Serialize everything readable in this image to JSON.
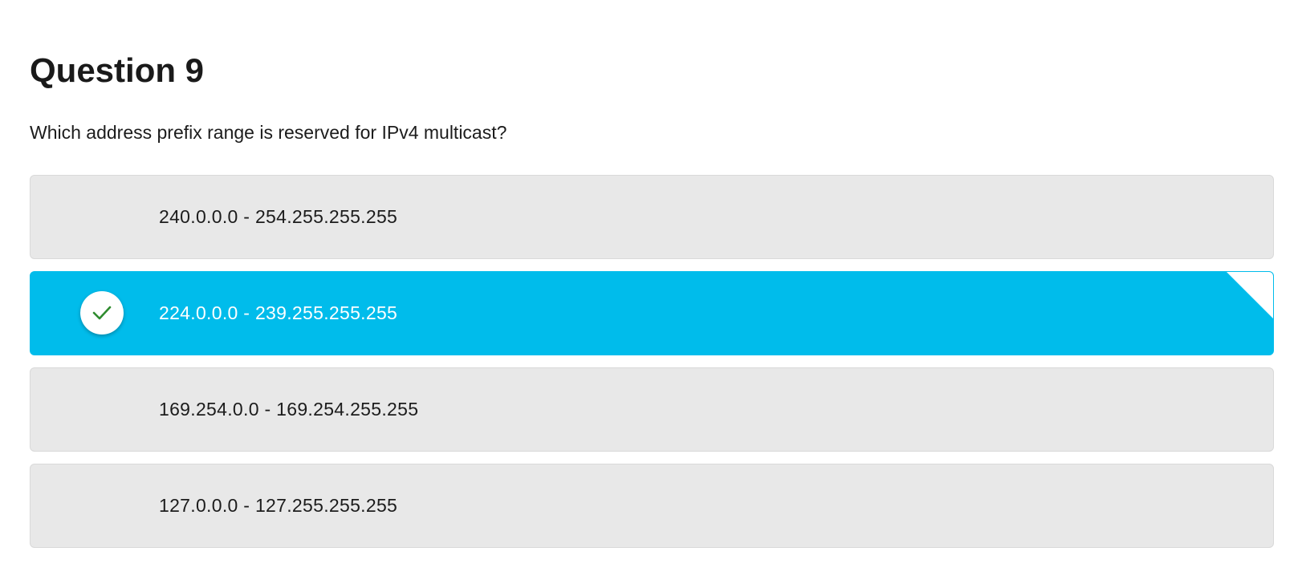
{
  "question": {
    "title": "Question 9",
    "prompt": "Which address prefix range is reserved for IPv4 multicast?"
  },
  "options": [
    {
      "label": "240.0.0.0 - 254.255.255.255",
      "selected": false
    },
    {
      "label": "224.0.0.0 - 239.255.255.255",
      "selected": true
    },
    {
      "label": "169.254.0.0 - 169.254.255.255",
      "selected": false
    },
    {
      "label": "127.0.0.0 - 127.255.255.255",
      "selected": false
    }
  ],
  "icons": {
    "selected_indicator": "check-icon"
  },
  "colors": {
    "selected_background": "#00bceb",
    "unselected_background": "#e8e8e8",
    "check_color": "#2e8b2e",
    "text": "#1c1c1c"
  }
}
